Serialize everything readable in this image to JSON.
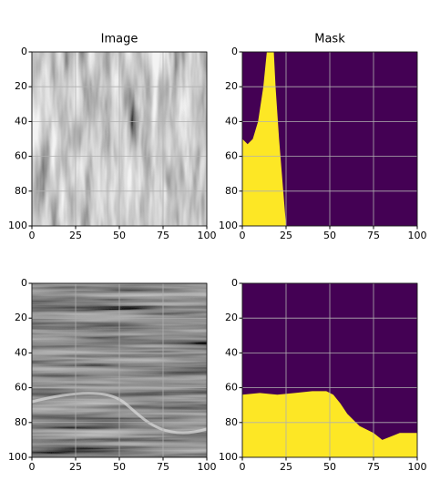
{
  "chart_data": [
    {
      "type": "image",
      "title": "Image",
      "xlim": [
        0,
        100
      ],
      "ylim": [
        100,
        0
      ],
      "xticks": [
        0,
        25,
        50,
        75,
        100
      ],
      "yticks": [
        0,
        20,
        40,
        60,
        80,
        100
      ],
      "grid": true
    },
    {
      "type": "area",
      "title": "Mask",
      "x": [
        0,
        3,
        6,
        9,
        12,
        14,
        18,
        19,
        21,
        23,
        25
      ],
      "values": [
        50,
        53,
        50,
        40,
        20,
        0,
        0,
        20,
        50,
        75,
        100
      ],
      "color": "#fde725",
      "background": "#440154",
      "xlim": [
        0,
        100
      ],
      "ylim": [
        100,
        0
      ],
      "xticks": [
        0,
        25,
        50,
        75,
        100
      ],
      "yticks": [
        0,
        20,
        40,
        60,
        80,
        100
      ],
      "grid": true
    },
    {
      "type": "image",
      "xlim": [
        0,
        100
      ],
      "ylim": [
        100,
        0
      ],
      "xticks": [
        0,
        25,
        50,
        75,
        100
      ],
      "yticks": [
        0,
        20,
        40,
        60,
        80,
        100
      ],
      "grid": true
    },
    {
      "type": "area",
      "x": [
        0,
        10,
        20,
        30,
        40,
        48,
        52,
        56,
        60,
        67,
        75,
        80,
        85,
        90,
        100
      ],
      "values": [
        64,
        63,
        64,
        63,
        62,
        62,
        64,
        69,
        75,
        82,
        86,
        90,
        88,
        86,
        86
      ],
      "color": "#fde725",
      "background": "#440154",
      "xlim": [
        0,
        100
      ],
      "ylim": [
        100,
        0
      ],
      "xticks": [
        0,
        25,
        50,
        75,
        100
      ],
      "yticks": [
        0,
        20,
        40,
        60,
        80,
        100
      ],
      "grid": true
    }
  ]
}
